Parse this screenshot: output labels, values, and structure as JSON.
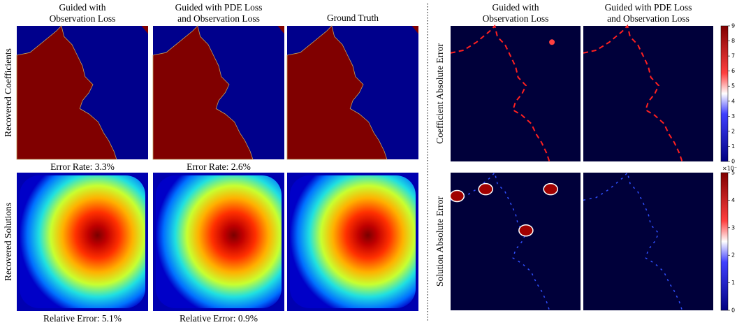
{
  "left": {
    "columns": [
      [
        "Guided with",
        "Observation Loss"
      ],
      [
        "Guided with PDE Loss",
        "and Observation Loss"
      ],
      [
        "Ground Truth"
      ]
    ],
    "rows": [
      "Recovered Coefficients",
      "Recovered Solutions"
    ],
    "captions": {
      "coefficients": [
        "Error Rate: 3.3%",
        "Error Rate: 2.6%"
      ],
      "solutions": [
        "Relative Error: 5.1%",
        "Relative Error: 0.9%"
      ]
    }
  },
  "right": {
    "columns": [
      [
        "Guided with",
        "Observation Loss"
      ],
      [
        "Guided with PDE Loss",
        "and Observation Loss"
      ]
    ],
    "rows": [
      "Coefficient Absolute Error",
      "Solution Absolute Error"
    ],
    "colorbars": [
      {
        "ticks": [
          "0",
          "1",
          "2",
          "3",
          "4",
          "5",
          "6",
          "7",
          "8",
          "9"
        ]
      },
      {
        "scale": "×10⁻⁴",
        "ticks": [
          "0",
          "1",
          "2",
          "3",
          "4",
          "5"
        ]
      }
    ]
  }
}
